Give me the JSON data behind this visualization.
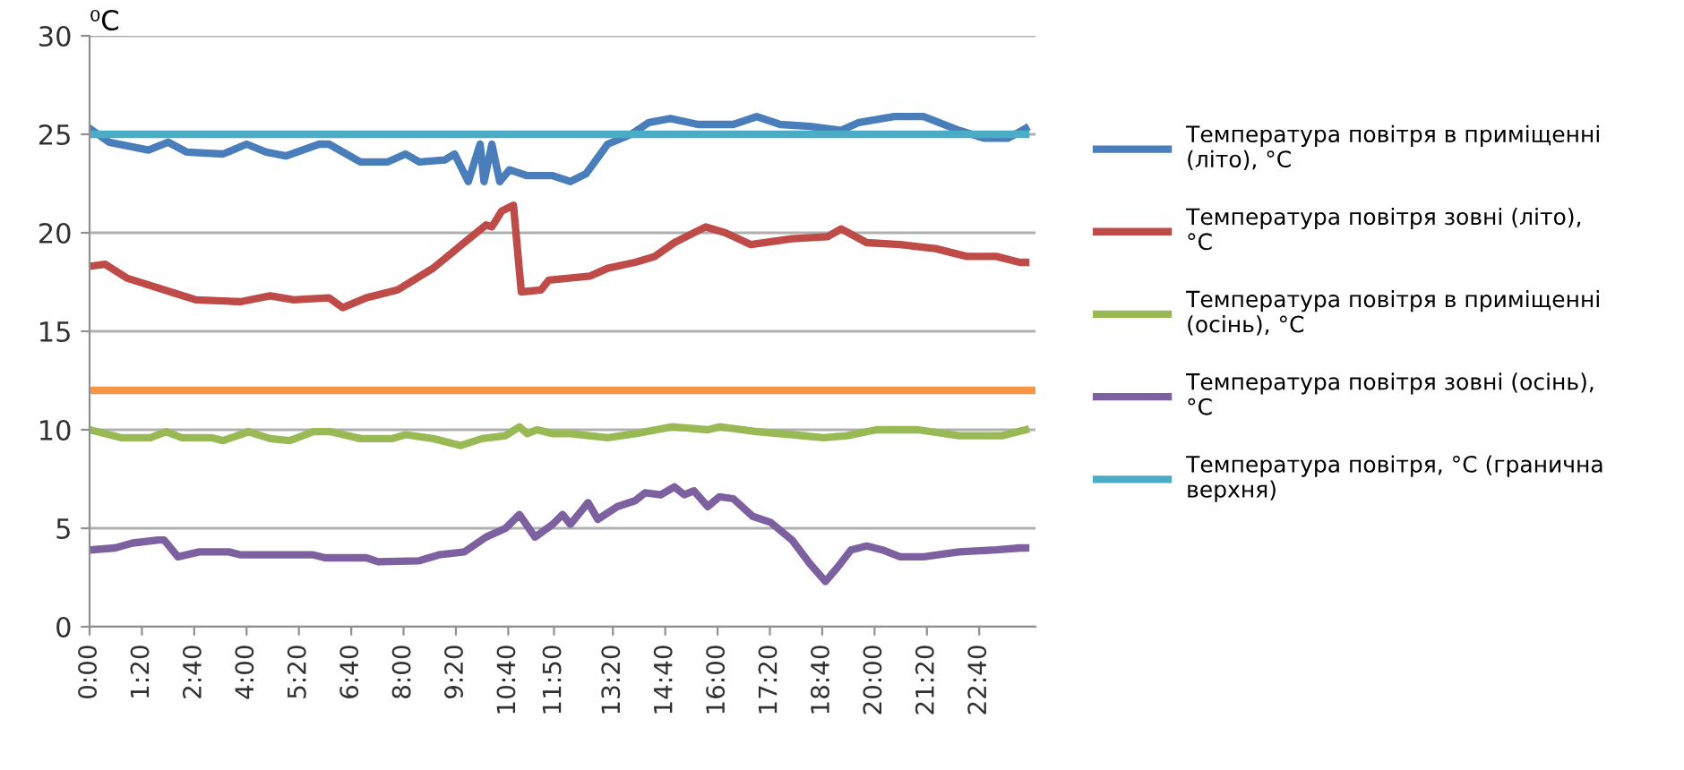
{
  "chart_data": {
    "type": "line",
    "ylabel": "⁰C",
    "xlim": [
      0,
      24.1
    ],
    "ylim": [
      0,
      30
    ],
    "yticks": [
      0,
      5,
      10,
      15,
      20,
      25,
      30
    ],
    "xticks": [
      {
        "value": 0,
        "label": "0:00"
      },
      {
        "value": 1.3333,
        "label": "1:20"
      },
      {
        "value": 2.6667,
        "label": "2:40"
      },
      {
        "value": 4,
        "label": "4:00"
      },
      {
        "value": 5.3333,
        "label": "5:20"
      },
      {
        "value": 6.6667,
        "label": "6:40"
      },
      {
        "value": 8,
        "label": "8:00"
      },
      {
        "value": 9.3333,
        "label": "9:20"
      },
      {
        "value": 10.6667,
        "label": "10:40"
      },
      {
        "value": 11.8333,
        "label": "11:50"
      },
      {
        "value": 13.3333,
        "label": "13:20"
      },
      {
        "value": 14.6667,
        "label": "14:40"
      },
      {
        "value": 16,
        "label": "16:00"
      },
      {
        "value": 17.3333,
        "label": "17:20"
      },
      {
        "value": 18.6667,
        "label": "18:40"
      },
      {
        "value": 20,
        "label": "20:00"
      },
      {
        "value": 21.3333,
        "label": "21:20"
      },
      {
        "value": 22.6667,
        "label": "22:40"
      }
    ],
    "grid": "y",
    "legend": "right",
    "marker": "none",
    "ref_lines": [
      {
        "axis": "y",
        "value": 12,
        "color": "#f79646"
      }
    ],
    "series": [
      {
        "name": "Температура повітря в приміщенні\n(літо), °C",
        "color": "#4a7ebb",
        "x": [
          0,
          0.5,
          1.5,
          2.0,
          2.47,
          3.4,
          4.0,
          4.5,
          5.0,
          5.85,
          6.1,
          6.9,
          7.6,
          8.05,
          8.4,
          9.05,
          9.3,
          9.65,
          9.95,
          10.05,
          10.25,
          10.45,
          10.7,
          11.15,
          11.8,
          12.25,
          12.65,
          13.2,
          13.8,
          14.25,
          14.8,
          15.5,
          16.4,
          17.0,
          17.6,
          18.35,
          19.15,
          19.6,
          20.5,
          21.25,
          22.15,
          22.8,
          23.4,
          23.85
        ],
        "values": [
          25.3,
          24.6,
          24.2,
          24.6,
          24.1,
          24.0,
          24.5,
          24.1,
          23.9,
          24.5,
          24.5,
          23.6,
          23.6,
          24.0,
          23.6,
          23.7,
          24.0,
          22.6,
          24.5,
          22.6,
          24.5,
          22.6,
          23.2,
          22.9,
          22.9,
          22.6,
          23.0,
          24.5,
          25.0,
          25.6,
          25.8,
          25.5,
          25.5,
          25.9,
          25.5,
          25.4,
          25.2,
          25.6,
          25.9,
          25.9,
          25.2,
          24.8,
          24.8,
          25.3
        ]
      },
      {
        "name": "Температура повітря зовні (літо),\n°C",
        "color": "#be4b48",
        "x": [
          0,
          0.4,
          0.95,
          1.9,
          2.7,
          3.85,
          4.6,
          5.2,
          6.1,
          6.45,
          7.05,
          7.85,
          8.75,
          10.1,
          10.25,
          10.5,
          10.8,
          11.0,
          11.5,
          11.7,
          12.75,
          13.2,
          13.9,
          14.4,
          14.9,
          15.7,
          16.2,
          16.85,
          17.9,
          18.8,
          19.15,
          19.8,
          20.65,
          21.55,
          22.35,
          23.1,
          23.7,
          23.85
        ],
        "values": [
          18.3,
          18.4,
          17.7,
          17.1,
          16.6,
          16.5,
          16.8,
          16.6,
          16.7,
          16.2,
          16.7,
          17.1,
          18.2,
          20.4,
          20.3,
          21.1,
          21.4,
          17.0,
          17.1,
          17.6,
          17.8,
          18.2,
          18.5,
          18.8,
          19.5,
          20.3,
          20.0,
          19.4,
          19.7,
          19.8,
          20.2,
          19.5,
          19.4,
          19.2,
          18.8,
          18.8,
          18.5,
          18.5
        ]
      },
      {
        "name": "Температура повітря в приміщенні\n(осінь), °C",
        "color": "#98b954",
        "x": [
          0,
          0.8,
          1.55,
          1.95,
          2.35,
          3.1,
          3.4,
          4.05,
          4.6,
          5.1,
          5.7,
          6.15,
          6.9,
          7.7,
          8.05,
          8.75,
          9.45,
          10.0,
          10.6,
          10.95,
          11.15,
          11.4,
          11.8,
          12.25,
          13.2,
          13.9,
          14.85,
          15.75,
          16.05,
          17.0,
          17.9,
          18.7,
          19.3,
          20.05,
          21.1,
          22.15,
          23.25,
          23.85
        ],
        "values": [
          10.0,
          9.6,
          9.6,
          9.9,
          9.6,
          9.6,
          9.45,
          9.9,
          9.55,
          9.45,
          9.9,
          9.9,
          9.55,
          9.55,
          9.75,
          9.55,
          9.2,
          9.55,
          9.7,
          10.15,
          9.8,
          10.0,
          9.8,
          9.8,
          9.6,
          9.8,
          10.15,
          10.0,
          10.15,
          9.9,
          9.75,
          9.6,
          9.7,
          10.0,
          10.0,
          9.7,
          9.7,
          10.0
        ]
      },
      {
        "name": "Температура повітря зовні (осінь),\n°C",
        "color": "#7d60a0",
        "x": [
          0,
          0.65,
          1.1,
          1.75,
          1.9,
          2.25,
          2.8,
          3.55,
          3.85,
          5.7,
          6.0,
          7.05,
          7.35,
          8.4,
          8.9,
          9.55,
          10.1,
          10.6,
          10.95,
          11.35,
          11.8,
          12.05,
          12.25,
          12.7,
          12.95,
          13.45,
          13.9,
          14.15,
          14.55,
          14.9,
          15.15,
          15.4,
          15.75,
          16.05,
          16.4,
          16.9,
          17.35,
          17.9,
          18.35,
          18.75,
          19.05,
          19.4,
          19.8,
          20.2,
          20.65,
          21.25,
          22.15,
          23.1,
          23.7,
          23.85
        ],
        "values": [
          3.9,
          4.0,
          4.25,
          4.4,
          4.4,
          3.55,
          3.8,
          3.8,
          3.65,
          3.65,
          3.5,
          3.5,
          3.3,
          3.35,
          3.65,
          3.8,
          4.55,
          5.0,
          5.7,
          4.55,
          5.2,
          5.7,
          5.2,
          6.3,
          5.45,
          6.1,
          6.4,
          6.8,
          6.7,
          7.1,
          6.7,
          6.9,
          6.1,
          6.6,
          6.5,
          5.6,
          5.3,
          4.4,
          3.2,
          2.3,
          3.0,
          3.9,
          4.1,
          3.9,
          3.55,
          3.55,
          3.8,
          3.9,
          4.0,
          4.0
        ]
      },
      {
        "name": "Температура повітря, °C (гранична\nверхня)",
        "color": "#4bacc6",
        "x": [
          0,
          23.85
        ],
        "values": [
          25,
          25
        ]
      }
    ]
  }
}
